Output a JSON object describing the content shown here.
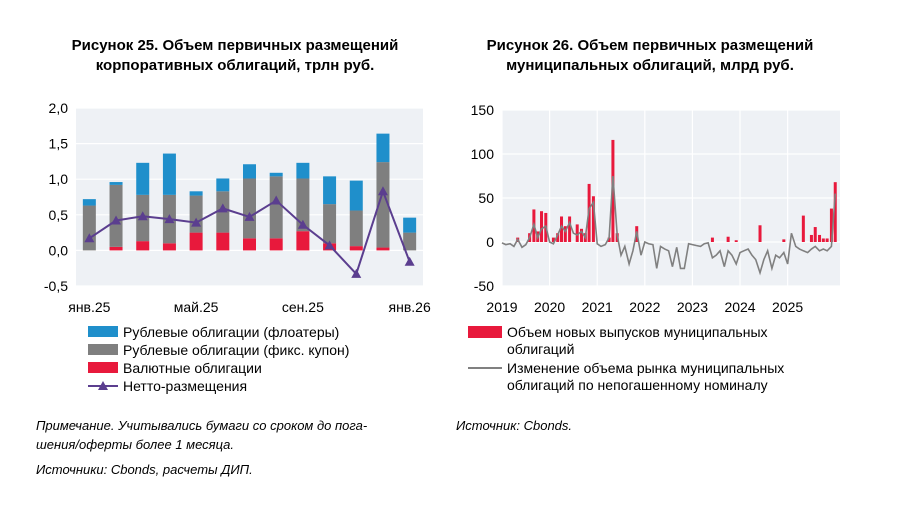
{
  "chart_data": [
    {
      "type": "bar",
      "title": "Рисунок 25. Объем первичных размещений корпоративных облигаций, трлн руб.",
      "title_lines": [
        "Рисунок 25. Объем первичных размещений",
        "корпоративных облигаций, трлн руб."
      ],
      "ylim": [
        -0.5,
        2.0
      ],
      "yticks": [
        "-0,5",
        "0,0",
        "0,5",
        "1,0",
        "1,5",
        "2,0"
      ],
      "xticks": [
        "янв.25",
        "май.25",
        "сен.25",
        "янв.26"
      ],
      "categories": [
        "янв.25",
        "фев.25",
        "мар.25",
        "апр.25",
        "май.25",
        "июн.25",
        "июл.25",
        "авг.25",
        "сен.25",
        "окт.25",
        "ноя.25",
        "дек.25",
        "янв.26"
      ],
      "series": [
        {
          "name": "Валютные облигации",
          "color": "#e8193c",
          "values": [
            0.0,
            0.05,
            0.13,
            0.1,
            0.25,
            0.25,
            0.17,
            0.17,
            0.27,
            0.1,
            0.06,
            0.04,
            0.0
          ]
        },
        {
          "name": "Рублевые облигации (фикс. купон)",
          "color": "#7f7f7f",
          "values": [
            0.63,
            0.87,
            0.65,
            0.68,
            0.52,
            0.58,
            0.84,
            0.87,
            0.74,
            0.55,
            0.5,
            1.2,
            0.25
          ]
        },
        {
          "name": "Рублевые облигации (флоатеры)",
          "color": "#1f8fcb",
          "values": [
            0.09,
            0.04,
            0.45,
            0.58,
            0.06,
            0.18,
            0.2,
            0.05,
            0.22,
            0.39,
            0.42,
            0.4,
            0.21
          ]
        },
        {
          "name": "Нетто-размещения",
          "color": "#5b3e8f",
          "type": "line",
          "values": [
            0.17,
            0.42,
            0.48,
            0.44,
            0.39,
            0.59,
            0.47,
            0.7,
            0.36,
            0.07,
            -0.33,
            0.83,
            -0.16
          ]
        }
      ],
      "legend": [
        {
          "label": "Рублевые облигации (флоатеры)",
          "color": "#1f8fcb",
          "shape": "box"
        },
        {
          "label": "Рублевые облигации (фикс. купон)",
          "color": "#7f7f7f",
          "shape": "box"
        },
        {
          "label": "Валютные облигации",
          "color": "#e8193c",
          "shape": "box"
        },
        {
          "label": "Нетто-размещения",
          "color": "#5b3e8f",
          "shape": "line-triangle"
        }
      ],
      "note": "Примечание. Учитывались бумаги со сроком до погашения/оферты более 1 месяца.",
      "note_lines": [
        "Примечание. Учитывались бумаги со сроком до пога-",
        "шения/оферты более 1 месяца."
      ],
      "source": "Источники: Cbonds, расчеты ДИП."
    },
    {
      "type": "bar",
      "title": "Рисунок 26. Объем первичных размещений муниципальных облигаций, млрд руб.",
      "title_lines": [
        "Рисунок 26. Объем первичных размещений",
        "муниципальных облигаций, млрд руб."
      ],
      "ylim": [
        -50,
        150
      ],
      "yticks": [
        "-50",
        "0",
        "50",
        "100",
        "150"
      ],
      "xlim": [
        2019,
        2026.1
      ],
      "xticks": [
        "2019",
        "2020",
        "2021",
        "2022",
        "2023",
        "2024",
        "2025"
      ],
      "bars": {
        "name": "Объем новых выпусков муниципальных облигаций",
        "color": "#e8193c",
        "x": [
          2019.33,
          2019.58,
          2019.67,
          2019.75,
          2019.83,
          2019.92,
          2020.08,
          2020.17,
          2020.25,
          2020.33,
          2020.42,
          2020.58,
          2020.67,
          2020.75,
          2020.83,
          2020.92,
          2021.25,
          2021.33,
          2021.42,
          2021.83,
          2023.42,
          2023.75,
          2023.92,
          2024.42,
          2024.92,
          2025.33,
          2025.5,
          2025.58,
          2025.67,
          2025.75,
          2025.83,
          2025.92,
          2026.0
        ],
        "values": [
          5,
          10,
          37,
          12,
          35,
          33,
          5,
          10,
          29,
          18,
          29,
          20,
          15,
          10,
          66,
          52,
          5,
          116,
          10,
          18,
          5,
          6,
          2,
          19,
          3,
          30,
          8,
          17,
          8,
          4,
          4,
          38,
          68
        ]
      },
      "line": {
        "name": "Изменение объема рынка муниципальных облигаций по непогашенному номиналу",
        "color": "#808080",
        "x": [
          2019.0,
          2019.08,
          2019.17,
          2019.25,
          2019.33,
          2019.42,
          2019.5,
          2019.58,
          2019.67,
          2019.75,
          2019.83,
          2019.92,
          2020.0,
          2020.08,
          2020.17,
          2020.25,
          2020.33,
          2020.42,
          2020.5,
          2020.58,
          2020.67,
          2020.75,
          2020.83,
          2020.92,
          2021.0,
          2021.08,
          2021.17,
          2021.25,
          2021.33,
          2021.42,
          2021.5,
          2021.58,
          2021.67,
          2021.75,
          2021.83,
          2021.92,
          2022.0,
          2022.08,
          2022.17,
          2022.25,
          2022.33,
          2022.42,
          2022.5,
          2022.58,
          2022.67,
          2022.75,
          2022.83,
          2022.92,
          2023.0,
          2023.08,
          2023.17,
          2023.25,
          2023.33,
          2023.42,
          2023.5,
          2023.58,
          2023.67,
          2023.75,
          2023.83,
          2023.92,
          2024.0,
          2024.08,
          2024.17,
          2024.25,
          2024.33,
          2024.42,
          2024.5,
          2024.58,
          2024.67,
          2024.75,
          2024.83,
          2024.92,
          2025.0,
          2025.08,
          2025.17,
          2025.25,
          2025.33,
          2025.42,
          2025.5,
          2025.58,
          2025.67,
          2025.75,
          2025.83,
          2025.92,
          2026.0
        ],
        "values": [
          -1,
          -3,
          -2,
          -5,
          3,
          -6,
          -3,
          5,
          20,
          5,
          15,
          18,
          0,
          -2,
          8,
          18,
          12,
          22,
          10,
          8,
          12,
          5,
          38,
          45,
          -2,
          -5,
          -3,
          5,
          75,
          8,
          -15,
          -5,
          -25,
          -10,
          12,
          -15,
          0,
          -2,
          -3,
          -30,
          -5,
          -8,
          -10,
          -28,
          -6,
          -30,
          -30,
          -2,
          -3,
          -4,
          -5,
          -2,
          -1,
          -18,
          -15,
          -10,
          -28,
          -10,
          -15,
          -25,
          -12,
          -10,
          -8,
          -15,
          -20,
          -35,
          -20,
          -10,
          -30,
          -15,
          -18,
          -12,
          -25,
          10,
          -5,
          -8,
          -10,
          -12,
          -8,
          -5,
          -10,
          -8,
          -10,
          -5,
          55
        ]
      },
      "legend": [
        {
          "label": "Объем новых выпусков муниципальных облигаций",
          "lines": [
            "Объем новых выпусков муниципальных",
            "облигаций"
          ],
          "color": "#e8193c",
          "shape": "box"
        },
        {
          "label": "Изменение объема рынка муниципальных облигаций по непогашенному номиналу",
          "lines": [
            "Изменение объема рынка муниципальных",
            "облигаций по непогашенному номиналу"
          ],
          "color": "#808080",
          "shape": "line"
        }
      ],
      "source": "Источник: Cbonds."
    }
  ]
}
